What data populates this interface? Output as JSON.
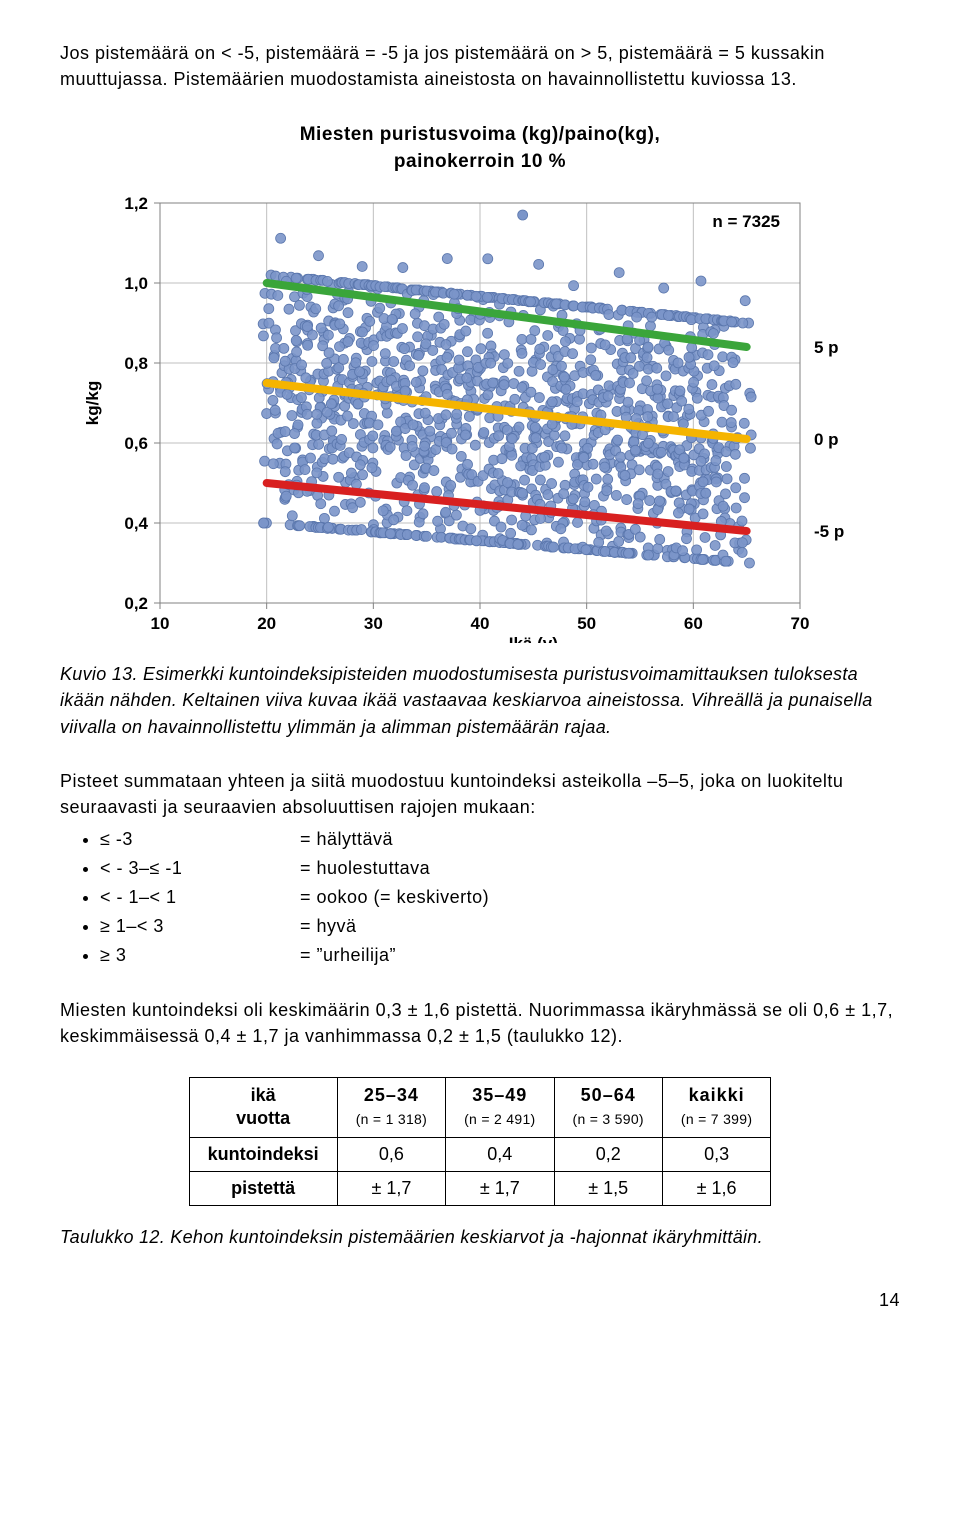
{
  "intro": "Jos pistemäärä on < -5, pistemäärä = -5 ja jos pistemäärä on > 5, pistemäärä = 5 kussakin muuttujassa. Pistemäärien muodostamista aineistosta on havainnollistettu kuviossa 13.",
  "chart": {
    "type": "scatter_with_lines",
    "title_line1": "Miesten puristusvoima (kg)/paino(kg),",
    "title_line2": "painokerroin 10 %",
    "n_label": "n = 7325",
    "xlabel": "Ikä (v)",
    "ylabel": "kg/kg",
    "xlim": [
      10,
      70
    ],
    "ylim": [
      0.2,
      1.2
    ],
    "xticks": [
      10,
      20,
      30,
      40,
      50,
      60,
      70
    ],
    "yticks": [
      0.2,
      0.4,
      0.6,
      0.8,
      1.0,
      1.2
    ],
    "ytick_labels": [
      "0,2",
      "0,4",
      "0,6",
      "0,8",
      "1,0",
      "1,2"
    ],
    "grid_color": "#bfbfbf",
    "axis_color": "#808080",
    "background_color": "#ffffff",
    "tick_fontsize": 17,
    "label_fontsize": 17,
    "title_fontsize": 19,
    "scatter": {
      "color_fill": "#7b95c9",
      "color_stroke": "#5b77ad",
      "radius": 5,
      "opacity": 0.9,
      "x_start": 20,
      "x_end": 65,
      "spread_top_start": 1.02,
      "spread_top_end": 0.9,
      "spread_bottom_start": 0.4,
      "spread_bottom_end": 0.3,
      "columns": 46,
      "per_column": 34
    },
    "lines": [
      {
        "label": "5 p",
        "color": "#3aa53a",
        "width": 8,
        "x1": 20,
        "y1": 1.0,
        "x2": 65,
        "y2": 0.84
      },
      {
        "label": "0 p",
        "color": "#f5b400",
        "width": 8,
        "x1": 20,
        "y1": 0.75,
        "x2": 65,
        "y2": 0.61
      },
      {
        "label": "-5 p",
        "color": "#d82020",
        "width": 8,
        "x1": 20,
        "y1": 0.5,
        "x2": 65,
        "y2": 0.38
      }
    ],
    "line_label_fontsize": 17,
    "line_label_fontweight": "bold"
  },
  "fig_caption": "Kuvio 13. Esimerkki kuntoindeksipisteiden muodostumisesta puristusvoimamittauksen tuloksesta ikään nähden. Keltainen viiva kuvaa ikää vastaavaa keskiarvoa aineistossa. Vihreällä ja punaisella viivalla on havainnollistettu ylimmän ja alimman pistemäärän rajaa.",
  "classification_intro": "Pisteet summataan yhteen ja siitä muodostuu kuntoindeksi asteikolla –5–5, joka on luokiteltu seuraavasti ja seuraavien absoluuttisen rajojen mukaan:",
  "classes": [
    {
      "range": "≤ -3",
      "label": "= hälyttävä"
    },
    {
      "range": "< - 3–≤ -1",
      "label": "= huolestuttava"
    },
    {
      "range": "< - 1–< 1",
      "label": "= ookoo (= keskiverto)"
    },
    {
      "range": "≥ 1–< 3",
      "label": "= hyvä"
    },
    {
      "range": "≥ 3",
      "label": "= ”urheilija”"
    }
  ],
  "summary_para": "Miesten kuntoindeksi oli keskimäärin 0,3 ± 1,6 pistettä. Nuorimmassa ikäryhmässä se oli 0,6 ± 1,7, keskimmäisessä 0,4 ± 1,7 ja vanhimmassa 0,2 ± 1,5 (taulukko 12).",
  "table": {
    "row_header_top": "ikä",
    "row_header_bottom": "vuotta",
    "columns": [
      {
        "top": "25–34",
        "sub": "(n = 1 318)"
      },
      {
        "top": "35–49",
        "sub": "(n = 2 491)"
      },
      {
        "top": "50–64",
        "sub": "(n = 3 590)"
      },
      {
        "top": "kaikki",
        "sub": "(n = 7 399)"
      }
    ],
    "rows": [
      {
        "label": "kuntoindeksi",
        "cells": [
          "0,6",
          "0,4",
          "0,2",
          "0,3"
        ]
      },
      {
        "label": "pistettä",
        "cells": [
          "± 1,7",
          "± 1,7",
          "± 1,5",
          "± 1,6"
        ]
      }
    ]
  },
  "table_caption": "Taulukko 12. Kehon kuntoindeksin pistemäärien keskiarvot ja -hajonnat ikäryhmittäin.",
  "page_number": "14"
}
